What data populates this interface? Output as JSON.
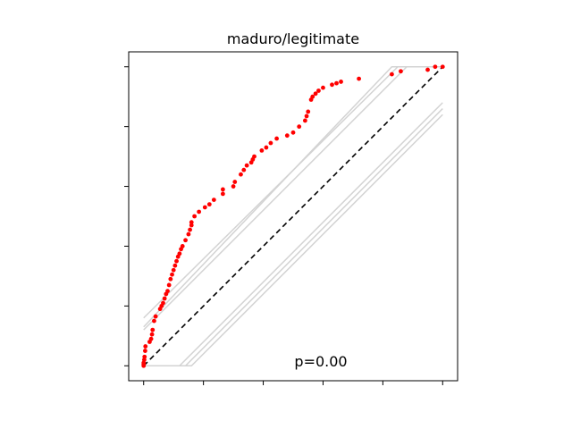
{
  "chart_data": {
    "type": "scatter",
    "title": "maduro/legitimate",
    "xlabel": "",
    "ylabel": "",
    "xlim": [
      -0.05,
      1.05
    ],
    "ylim": [
      -0.05,
      1.05
    ],
    "x_ticks": [
      0,
      0.2,
      0.4,
      0.6,
      0.8,
      1.0
    ],
    "y_ticks": [
      0,
      0.2,
      0.4,
      0.6,
      0.8,
      1.0
    ],
    "tick_labels_visible": false,
    "grid": false,
    "annotation": "p=0.00",
    "reference_line": {
      "x": [
        0,
        1
      ],
      "y": [
        0,
        1
      ],
      "style": "dashed",
      "color": "#000000"
    },
    "envelope_lines": [
      {
        "x": [
          0,
          0.85,
          1.0
        ],
        "y": [
          0.16,
          1.0,
          1.0
        ]
      },
      {
        "x": [
          0,
          0.83,
          1.0
        ],
        "y": [
          0.13,
          1.0,
          1.0
        ]
      },
      {
        "x": [
          0,
          0.88,
          1.0
        ],
        "y": [
          0.12,
          1.0,
          1.0
        ]
      },
      {
        "x": [
          0,
          0.12,
          1.0
        ],
        "y": [
          0,
          0,
          0.88
        ]
      },
      {
        "x": [
          0,
          0.14,
          1.0
        ],
        "y": [
          0,
          0,
          0.86
        ]
      },
      {
        "x": [
          0,
          0.16,
          1.0
        ],
        "y": [
          0,
          0,
          0.84
        ]
      }
    ],
    "envelope_color": "#d3d3d3",
    "series": [
      {
        "color": "#ff0000",
        "points": [
          [
            0.0,
            0.0
          ],
          [
            0.0,
            0.005
          ],
          [
            0.0,
            0.01
          ],
          [
            0.002,
            0.02
          ],
          [
            0.003,
            0.03
          ],
          [
            0.005,
            0.05
          ],
          [
            0.006,
            0.065
          ],
          [
            0.02,
            0.08
          ],
          [
            0.025,
            0.09
          ],
          [
            0.028,
            0.105
          ],
          [
            0.03,
            0.12
          ],
          [
            0.035,
            0.15
          ],
          [
            0.04,
            0.165
          ],
          [
            0.055,
            0.19
          ],
          [
            0.06,
            0.2
          ],
          [
            0.065,
            0.21
          ],
          [
            0.07,
            0.225
          ],
          [
            0.075,
            0.24
          ],
          [
            0.08,
            0.25
          ],
          [
            0.085,
            0.27
          ],
          [
            0.09,
            0.29
          ],
          [
            0.095,
            0.305
          ],
          [
            0.1,
            0.32
          ],
          [
            0.105,
            0.335
          ],
          [
            0.11,
            0.35
          ],
          [
            0.115,
            0.365
          ],
          [
            0.12,
            0.375
          ],
          [
            0.125,
            0.39
          ],
          [
            0.13,
            0.4
          ],
          [
            0.14,
            0.42
          ],
          [
            0.15,
            0.44
          ],
          [
            0.155,
            0.455
          ],
          [
            0.16,
            0.47
          ],
          [
            0.16,
            0.48
          ],
          [
            0.17,
            0.5
          ],
          [
            0.185,
            0.515
          ],
          [
            0.205,
            0.53
          ],
          [
            0.22,
            0.54
          ],
          [
            0.235,
            0.555
          ],
          [
            0.265,
            0.575
          ],
          [
            0.265,
            0.59
          ],
          [
            0.3,
            0.6
          ],
          [
            0.305,
            0.615
          ],
          [
            0.325,
            0.64
          ],
          [
            0.335,
            0.655
          ],
          [
            0.345,
            0.67
          ],
          [
            0.36,
            0.68
          ],
          [
            0.365,
            0.69
          ],
          [
            0.37,
            0.7
          ],
          [
            0.395,
            0.72
          ],
          [
            0.41,
            0.73
          ],
          [
            0.425,
            0.745
          ],
          [
            0.445,
            0.76
          ],
          [
            0.48,
            0.77
          ],
          [
            0.5,
            0.78
          ],
          [
            0.52,
            0.8
          ],
          [
            0.54,
            0.82
          ],
          [
            0.545,
            0.835
          ],
          [
            0.55,
            0.85
          ],
          [
            0.56,
            0.89
          ],
          [
            0.565,
            0.9
          ],
          [
            0.575,
            0.91
          ],
          [
            0.585,
            0.92
          ],
          [
            0.6,
            0.93
          ],
          [
            0.63,
            0.94
          ],
          [
            0.645,
            0.945
          ],
          [
            0.66,
            0.95
          ],
          [
            0.72,
            0.96
          ],
          [
            0.83,
            0.975
          ],
          [
            0.86,
            0.985
          ],
          [
            0.95,
            0.99
          ],
          [
            0.975,
            1.0
          ],
          [
            1.0,
            1.0
          ]
        ]
      }
    ]
  }
}
